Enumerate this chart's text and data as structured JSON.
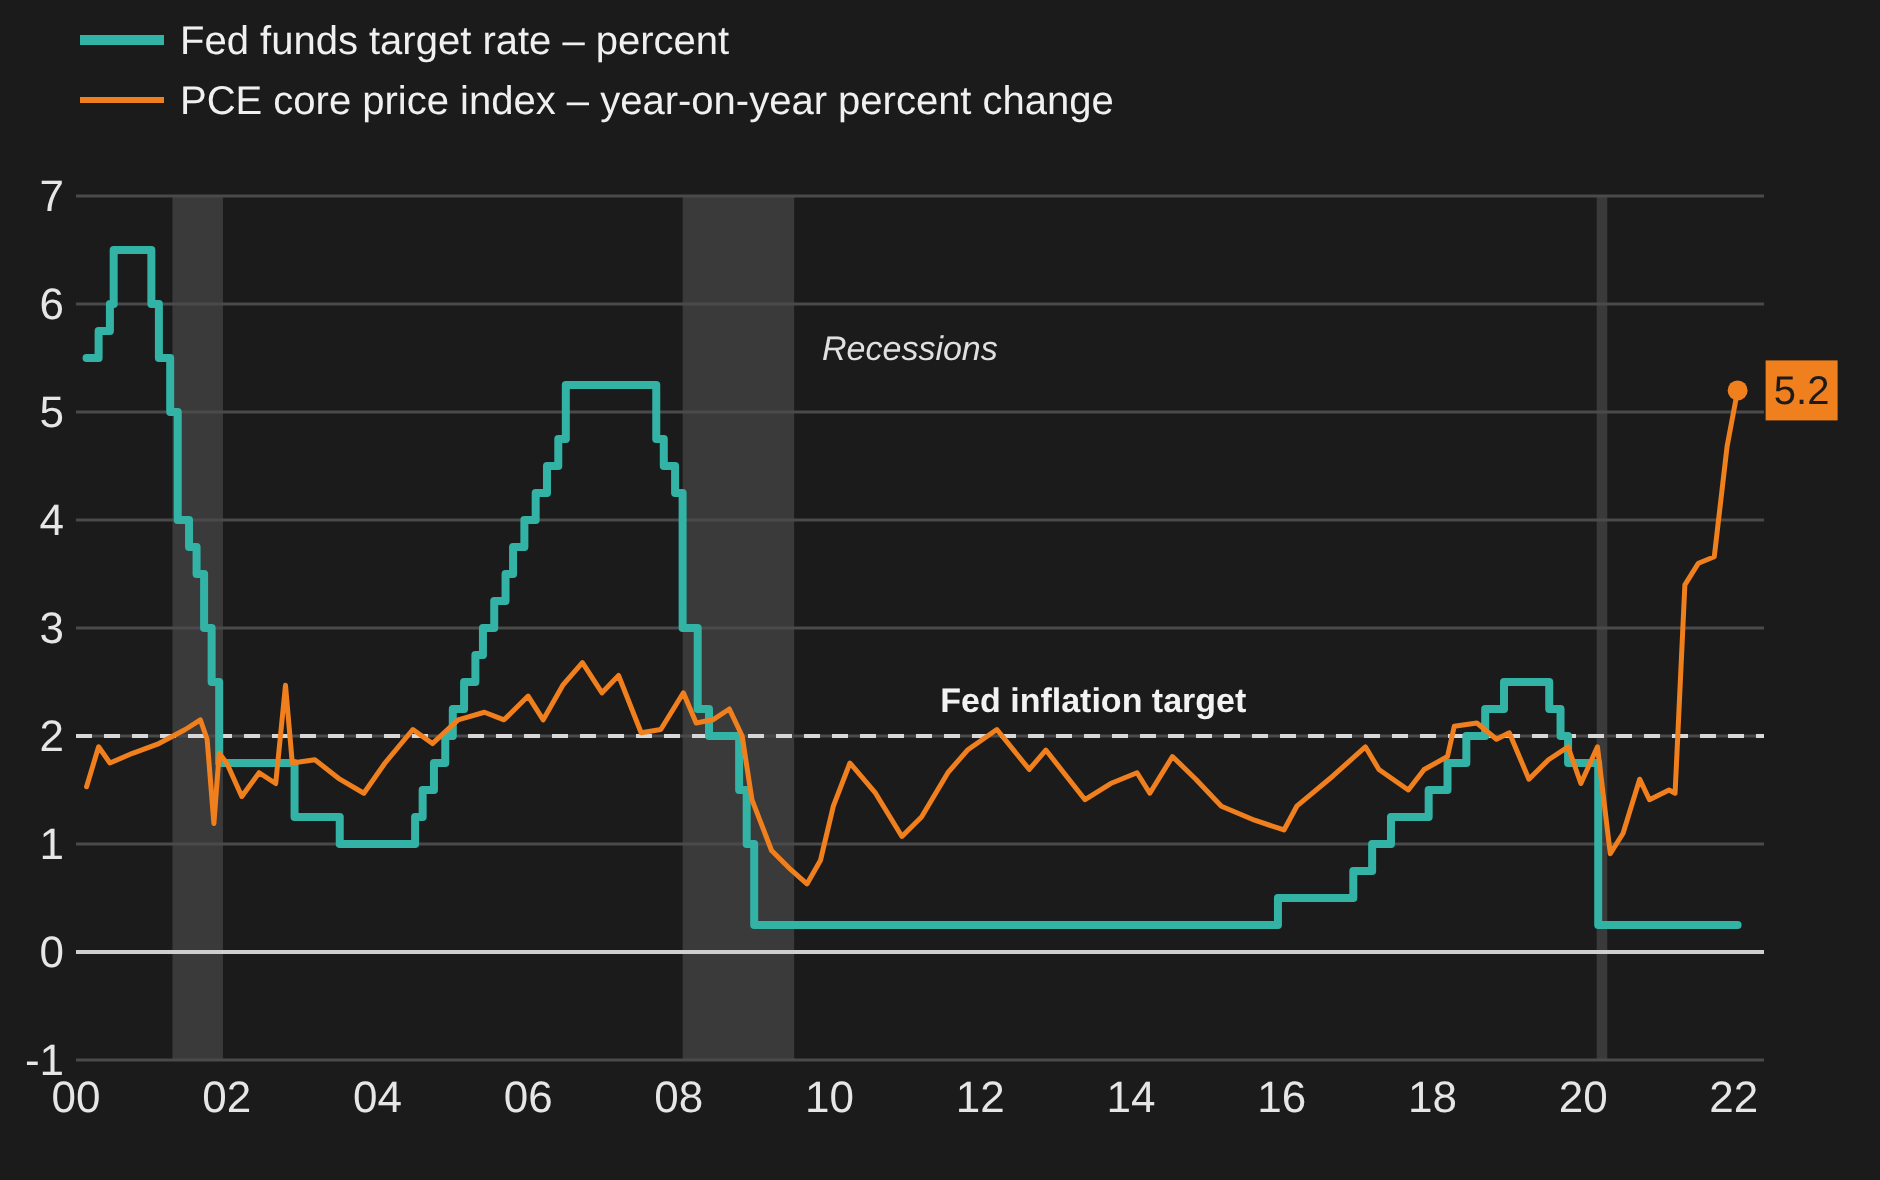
{
  "chart_data": {
    "type": "line",
    "legend": "top left",
    "grid": "y",
    "line_style": "solid",
    "xlim": [
      2000,
      2022.4
    ],
    "ylim": [
      -1,
      7
    ],
    "xticks": [
      {
        "value": 2000,
        "label": "00"
      },
      {
        "value": 2002,
        "label": "02"
      },
      {
        "value": 2004,
        "label": "04"
      },
      {
        "value": 2006,
        "label": "06"
      },
      {
        "value": 2008,
        "label": "08"
      },
      {
        "value": 2010,
        "label": "10"
      },
      {
        "value": 2012,
        "label": "12"
      },
      {
        "value": 2014,
        "label": "14"
      },
      {
        "value": 2016,
        "label": "16"
      },
      {
        "value": 2018,
        "label": "18"
      },
      {
        "value": 2020,
        "label": "20"
      },
      {
        "value": 2022,
        "label": "22"
      }
    ],
    "yticks": [
      -1,
      0,
      1,
      2,
      3,
      4,
      5,
      6,
      7
    ],
    "series": [
      {
        "name": "Fed funds target rate – percent",
        "type": "step",
        "color": "#33b3a6",
        "x": [
          2000.14,
          2000.3,
          2000.45,
          2000.5,
          2001.0,
          2001.1,
          2001.25,
          2001.35,
          2001.5,
          2001.6,
          2001.7,
          2001.8,
          2001.9,
          2002.9,
          2003.5,
          2004.5,
          2004.6,
          2004.75,
          2004.9,
          2005.0,
          2005.15,
          2005.3,
          2005.4,
          2005.55,
          2005.7,
          2005.8,
          2005.95,
          2006.1,
          2006.25,
          2006.4,
          2006.5,
          2007.7,
          2007.8,
          2007.95,
          2008.05,
          2008.25,
          2008.4,
          2008.8,
          2008.9,
          2009.0,
          2015.95,
          2016.95,
          2017.2,
          2017.45,
          2017.95,
          2018.2,
          2018.45,
          2018.7,
          2018.95,
          2019.55,
          2019.7,
          2019.8,
          2020.2,
          2022.05
        ],
        "values": [
          5.5,
          5.75,
          6.0,
          6.5,
          6.0,
          5.5,
          5.0,
          4.0,
          3.75,
          3.5,
          3.0,
          2.5,
          1.75,
          1.25,
          1.0,
          1.25,
          1.5,
          1.75,
          2.0,
          2.25,
          2.5,
          2.75,
          3.0,
          3.25,
          3.5,
          3.75,
          4.0,
          4.25,
          4.5,
          4.75,
          5.25,
          4.75,
          4.5,
          4.25,
          3.0,
          2.25,
          2.0,
          1.5,
          1.0,
          0.25,
          0.5,
          0.75,
          1.0,
          1.25,
          1.5,
          1.75,
          2.0,
          2.25,
          2.5,
          2.25,
          2.0,
          1.75,
          0.25,
          0.25
        ]
      },
      {
        "name": "PCE core price index – year-on-year percent change",
        "type": "line",
        "color": "#f07f1e",
        "x": [
          2000.14,
          2000.3,
          2000.45,
          2000.75,
          2001.1,
          2001.45,
          2001.65,
          2001.74,
          2001.83,
          2001.9,
          2002.0,
          2002.2,
          2002.43,
          2002.65,
          2002.78,
          2002.87,
          2003.17,
          2003.5,
          2003.82,
          2004.1,
          2004.47,
          2004.73,
          2005.07,
          2005.42,
          2005.68,
          2006.0,
          2006.2,
          2006.46,
          2006.72,
          2006.98,
          2007.2,
          2007.5,
          2007.76,
          2008.06,
          2008.23,
          2008.45,
          2008.67,
          2008.84,
          2008.97,
          2009.23,
          2009.49,
          2009.7,
          2009.88,
          2010.05,
          2010.27,
          2010.61,
          2010.96,
          2011.22,
          2011.57,
          2011.83,
          2012.22,
          2012.65,
          2012.87,
          2013.39,
          2013.73,
          2014.08,
          2014.25,
          2014.55,
          2014.86,
          2015.2,
          2015.64,
          2016.03,
          2016.2,
          2016.68,
          2017.11,
          2017.29,
          2017.68,
          2017.89,
          2018.2,
          2018.29,
          2018.59,
          2018.85,
          2019.02,
          2019.28,
          2019.54,
          2019.8,
          2019.97,
          2020.19,
          2020.36,
          2020.53,
          2020.75,
          2020.88,
          2021.14,
          2021.22,
          2021.35,
          2021.53,
          2021.74,
          2021.91,
          2022.05
        ],
        "values": [
          1.53,
          1.9,
          1.75,
          1.84,
          1.93,
          2.06,
          2.15,
          1.97,
          1.19,
          1.84,
          1.75,
          1.44,
          1.66,
          1.56,
          2.47,
          1.75,
          1.78,
          1.6,
          1.47,
          1.75,
          2.06,
          1.93,
          2.15,
          2.22,
          2.15,
          2.37,
          2.15,
          2.47,
          2.68,
          2.4,
          2.56,
          2.03,
          2.06,
          2.4,
          2.12,
          2.15,
          2.25,
          2.0,
          1.41,
          0.94,
          0.76,
          0.63,
          0.85,
          1.35,
          1.75,
          1.47,
          1.07,
          1.25,
          1.66,
          1.87,
          2.06,
          1.69,
          1.87,
          1.41,
          1.56,
          1.66,
          1.47,
          1.81,
          1.6,
          1.35,
          1.22,
          1.13,
          1.35,
          1.63,
          1.9,
          1.69,
          1.5,
          1.69,
          1.81,
          2.09,
          2.12,
          1.97,
          2.03,
          1.6,
          1.78,
          1.9,
          1.56,
          1.9,
          0.91,
          1.1,
          1.6,
          1.41,
          1.5,
          1.47,
          3.4,
          3.6,
          3.66,
          4.68,
          5.2
        ],
        "value_labels": [
          null,
          null,
          null,
          null,
          null,
          null,
          null,
          null,
          null,
          null,
          null,
          null,
          null,
          null,
          null,
          null,
          null,
          null,
          null,
          null,
          null,
          null,
          null,
          null,
          null,
          null,
          null,
          null,
          null,
          null,
          null,
          null,
          null,
          null,
          null,
          null,
          null,
          null,
          null,
          null,
          null,
          null,
          null,
          null,
          null,
          null,
          null,
          null,
          null,
          null,
          null,
          null,
          null,
          null,
          null,
          null,
          null,
          null,
          null,
          null,
          null,
          null,
          null,
          null,
          null,
          null,
          null,
          null,
          null,
          null,
          null,
          null,
          null,
          null,
          null,
          null,
          null,
          null,
          null,
          null,
          null,
          null,
          null,
          null,
          null,
          null,
          null,
          null,
          "5.2"
        ]
      }
    ],
    "ref_lines": [
      {
        "axis": "y",
        "value": 2,
        "label": "Fed inflation target",
        "color": "#d8d8d8",
        "line_style": "dashed"
      }
    ],
    "bands": [
      {
        "axis": "x",
        "from": 2001.28,
        "to": 2001.95,
        "color": "#3a3a3a"
      },
      {
        "axis": "x",
        "from": 2008.05,
        "to": 2009.53,
        "color": "#3a3a3a"
      },
      {
        "axis": "x",
        "from": 2020.18,
        "to": 2020.32,
        "color": "#3a3a3a"
      }
    ],
    "annotations": [
      "Recessions"
    ]
  }
}
